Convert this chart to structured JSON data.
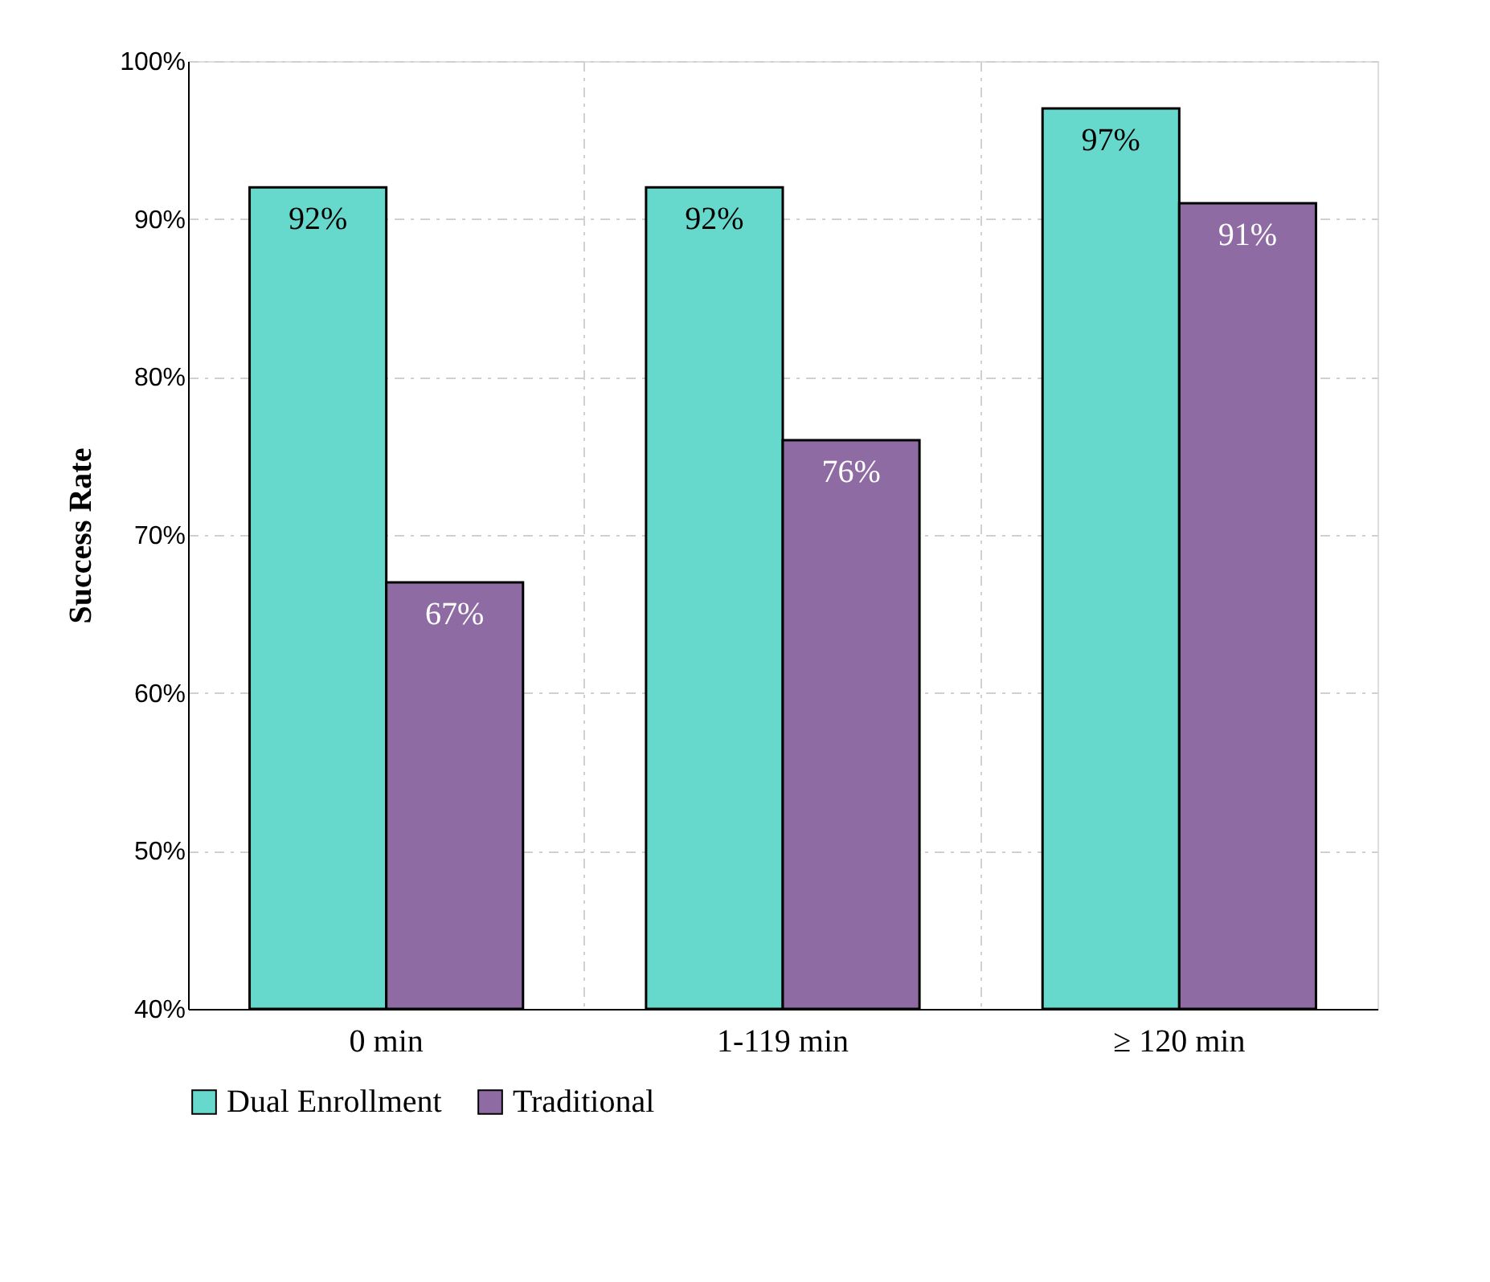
{
  "chart_data": {
    "type": "bar",
    "ylabel": "Success Rate",
    "categories": [
      "0 min",
      "1-119 min",
      "≥ 120 min"
    ],
    "series": [
      {
        "name": "Dual Enrollment",
        "color": "#66d9cc",
        "values": [
          92,
          92,
          97
        ],
        "value_labels": [
          "92%",
          "92%",
          "97%"
        ]
      },
      {
        "name": "Traditional",
        "color": "#8f6ba3",
        "values": [
          67,
          76,
          91
        ],
        "value_labels": [
          "67%",
          "76%",
          "91%"
        ]
      }
    ],
    "ylim": [
      40,
      100
    ],
    "yticks": [
      {
        "value": 40,
        "label": "40%"
      },
      {
        "value": 50,
        "label": "50%"
      },
      {
        "value": 60,
        "label": "60%"
      },
      {
        "value": 70,
        "label": "70%"
      },
      {
        "value": 80,
        "label": "80%"
      },
      {
        "value": 90,
        "label": "90%"
      },
      {
        "value": 100,
        "label": "100%"
      }
    ],
    "grid": true,
    "legend": "bottom"
  }
}
